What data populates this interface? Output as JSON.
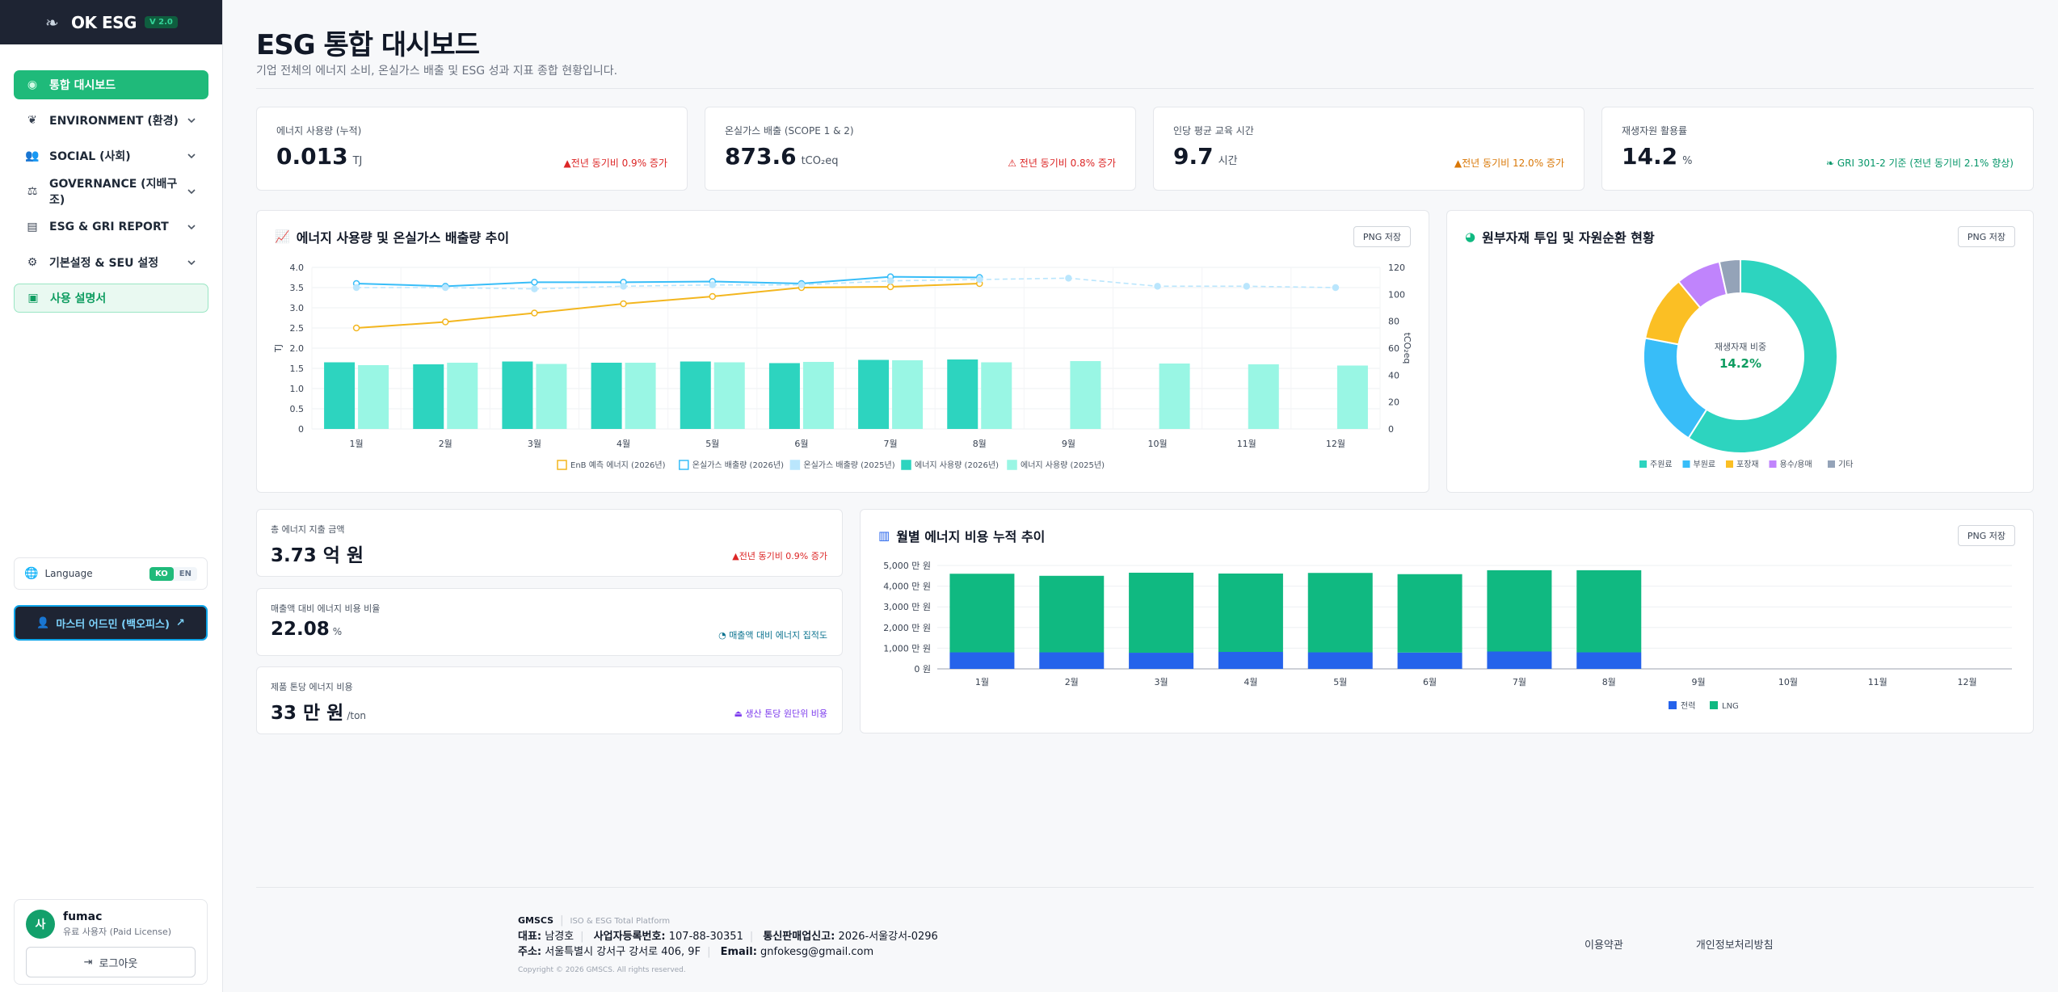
{
  "app": {
    "logo": "OK ESG",
    "version": "V 2.0"
  },
  "sidebar": {
    "items": [
      {
        "label": "통합 대시보드",
        "icon": "dashboard-icon"
      },
      {
        "label": "ENVIRONMENT (환경)",
        "icon": "leaf-icon"
      },
      {
        "label": "SOCIAL (사회)",
        "icon": "users-icon"
      },
      {
        "label": "GOVERNANCE (지배구조)",
        "icon": "scale-icon"
      },
      {
        "label": "ESG & GRI REPORT",
        "icon": "report-icon"
      },
      {
        "label": "기본설정 & SEU 설정",
        "icon": "gear-icon"
      },
      {
        "label": "사용 설명서",
        "icon": "book-icon"
      }
    ],
    "language": {
      "label": "Language",
      "ko": "KO",
      "en": "EN",
      "selected": "KO"
    },
    "master_button": "마스터 어드민 (백오피스)",
    "user": {
      "avatar": "사",
      "name": "fumac",
      "role": "유료 사용자 (Paid License)",
      "logout": "로그아웃"
    }
  },
  "header": {
    "title": "ESG 통합 대시보드",
    "subtitle": "기업 전체의 에너지 소비, 온실가스 배출 및 ESG 성과 지표 종합 현황입니다."
  },
  "kpis": [
    {
      "label": "에너지 사용량 (누적)",
      "value": "0.013",
      "unit": "TJ",
      "delta": "전년 동기비 0.9% 증가",
      "tone": "red"
    },
    {
      "label": "온실가스 배출 (SCOPE 1 & 2)",
      "value": "873.6",
      "unit": "tCO₂eq",
      "delta": "전년 동기비 0.8% 증가",
      "tone": "red"
    },
    {
      "label": "인당 평균 교육 시간",
      "value": "9.7",
      "unit": "시간",
      "delta": "전년 동기비 12.0% 증가",
      "tone": "orange"
    },
    {
      "label": "재생자원 활용률",
      "value": "14.2",
      "unit": "%",
      "delta": "GRI 301-2 기준 (전년 동기비 2.1% 향상)",
      "tone": "green"
    }
  ],
  "energy_chart": {
    "title": "에너지 사용량 및 온실가스 배출량 추이",
    "png_button": "PNG 저장"
  },
  "material_chart": {
    "title": "원부자재 투입 및 자원순환 현황",
    "png_button": "PNG 저장",
    "center_label": "재생자재 비중",
    "center_value": "14.2%"
  },
  "cost_cards": [
    {
      "label": "총 에너지 지출 금액",
      "value": "3.73 억 원",
      "unit": "",
      "delta": "전년 동기비 0.9% 증가",
      "tone": "red"
    },
    {
      "label": "매출액 대비 에너지 비용 비율",
      "value": "22.08",
      "unit": "%",
      "delta": "매출액 대비 에너지 집적도",
      "tone": "teal"
    },
    {
      "label": "제품 톤당 에너지 비용",
      "value": "33 만 원",
      "unit": "/ton",
      "delta": "생산 톤당 원단위 비용",
      "tone": "purple"
    }
  ],
  "cost_chart": {
    "title": "월별 에너지 비용 누적 추이",
    "png_button": "PNG 저장"
  },
  "chart_data": [
    {
      "type": "bar",
      "categories": [
        "1월",
        "2월",
        "3월",
        "4월",
        "5월",
        "6월",
        "7월",
        "8월",
        "9월",
        "10월",
        "11월",
        "12월"
      ],
      "ylabel": "TJ",
      "y2label": "tCO₂eq",
      "ylim": [
        0,
        4.0
      ],
      "y2lim": [
        0,
        120
      ],
      "yticks": [
        "0",
        "0.5",
        "1.0",
        "1.5",
        "2.0",
        "2.5",
        "3.0",
        "3.5",
        "4.0"
      ],
      "y2ticks": [
        "0",
        "20",
        "40",
        "60",
        "80",
        "100",
        "120"
      ],
      "series": [
        {
          "name": "EnB 예측 에너지 (2026년)",
          "kind": "line",
          "axis": "y",
          "color": "#f3b61f",
          "values": [
            2.5,
            2.65,
            2.87,
            3.1,
            3.28,
            3.5,
            3.52,
            3.6,
            null,
            null,
            null,
            null
          ]
        },
        {
          "name": "온실가스 배출량 (2026년)",
          "kind": "line",
          "axis": "y2",
          "color": "#38bdf8",
          "values": [
            108,
            106,
            109,
            109,
            109.5,
            108,
            113,
            112.5,
            null,
            null,
            null,
            null
          ]
        },
        {
          "name": "온실가스 배출량 (2025년)",
          "kind": "dashed",
          "axis": "y2",
          "color": "#bae6fd",
          "values": [
            105,
            105,
            104,
            106,
            107,
            107,
            110,
            111,
            112,
            106,
            106,
            105
          ]
        },
        {
          "name": "에너지 사용량 (2026년)",
          "kind": "bar",
          "axis": "y",
          "color": "#2dd4bf",
          "values": [
            1.65,
            1.6,
            1.67,
            1.64,
            1.67,
            1.63,
            1.71,
            1.72,
            null,
            null,
            null,
            null
          ]
        },
        {
          "name": "에너지 사용량 (2025년)",
          "kind": "bar",
          "axis": "y",
          "color": "#99f6e4",
          "values": [
            1.58,
            1.64,
            1.61,
            1.64,
            1.65,
            1.66,
            1.7,
            1.65,
            1.68,
            1.62,
            1.6,
            1.57
          ]
        }
      ]
    },
    {
      "type": "pie",
      "categories": [
        "주원료",
        "부원료",
        "포장재",
        "용수/용매",
        "기타"
      ],
      "values": [
        59,
        19,
        11,
        7.5,
        3.5
      ],
      "colors": [
        "#2dd4bf",
        "#38bdf8",
        "#fbbf24",
        "#c084fc",
        "#94a3b8"
      ]
    },
    {
      "type": "bar",
      "stacked": true,
      "categories": [
        "1월",
        "2월",
        "3월",
        "4월",
        "5월",
        "6월",
        "7월",
        "8월",
        "9월",
        "10월",
        "11월",
        "12월"
      ],
      "ylim": [
        0,
        5000
      ],
      "yticks": [
        "0 원",
        "1,000 만 원",
        "2,000 만 원",
        "3,000 만 원",
        "4,000 만 원",
        "5,000 만 원"
      ],
      "series": [
        {
          "name": "전력",
          "color": "#2563eb",
          "values": [
            800,
            800,
            780,
            820,
            800,
            790,
            840,
            800,
            null,
            null,
            null,
            null
          ]
        },
        {
          "name": "LNG",
          "color": "#10b981",
          "values": [
            3800,
            3700,
            3870,
            3790,
            3840,
            3790,
            3930,
            3970,
            null,
            null,
            null,
            null
          ]
        }
      ]
    }
  ],
  "footer": {
    "brand": "GMSCS",
    "tagline": "ISO & ESG Total Platform",
    "rep_label": "대표:",
    "rep": "남경호",
    "biz_label": "사업자등록번호:",
    "biz": "107-88-30351",
    "tel_label": "통신판매업신고:",
    "tel": "2026-서울강서-0296",
    "addr_label": "주소:",
    "addr": "서울특별시 강서구 강서로 406, 9F",
    "email_label": "Email:",
    "email": "gnfokesg@gmail.com",
    "copyright": "Copyright © 2026 GMSCS. All rights reserved.",
    "terms": "이용약관",
    "privacy": "개인정보처리방침"
  }
}
